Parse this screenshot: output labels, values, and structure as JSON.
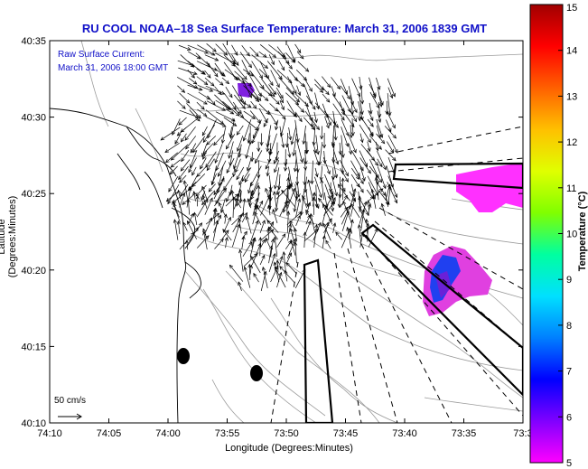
{
  "title": "RU COOL  NOAA–18  Sea Surface Temperature:  March 31, 2006 1839 GMT",
  "legend": {
    "line1": "Raw Surface Current:",
    "line2": "March 31, 2006 18:00 GMT"
  },
  "scale_label": "50 cm/s",
  "x_axis": {
    "label": "Longitude (Degrees:Minutes)",
    "ticks": [
      "74:10",
      "74:05",
      "74:00",
      "73:55",
      "73:50",
      "73:45",
      "73:40",
      "73:35",
      "73:3"
    ]
  },
  "y_axis": {
    "label": "Latitude (Degrees:Minutes)",
    "ticks": [
      "40:35",
      "40:30",
      "40:25",
      "40:20",
      "40:15",
      "40:10"
    ]
  },
  "colorbar": {
    "label": "Temperature (°C)",
    "ticks": [
      "15",
      "14",
      "13",
      "12",
      "11",
      "10",
      "9",
      "8",
      "7",
      "6",
      "5"
    ],
    "colors": [
      "#ff00ff",
      "#8000ff",
      "#0000ff",
      "#0080ff",
      "#00e0ff",
      "#00ffa0",
      "#80ff00",
      "#e0ff00",
      "#ffc000",
      "#ff6000",
      "#ff0000",
      "#a00000"
    ]
  }
}
